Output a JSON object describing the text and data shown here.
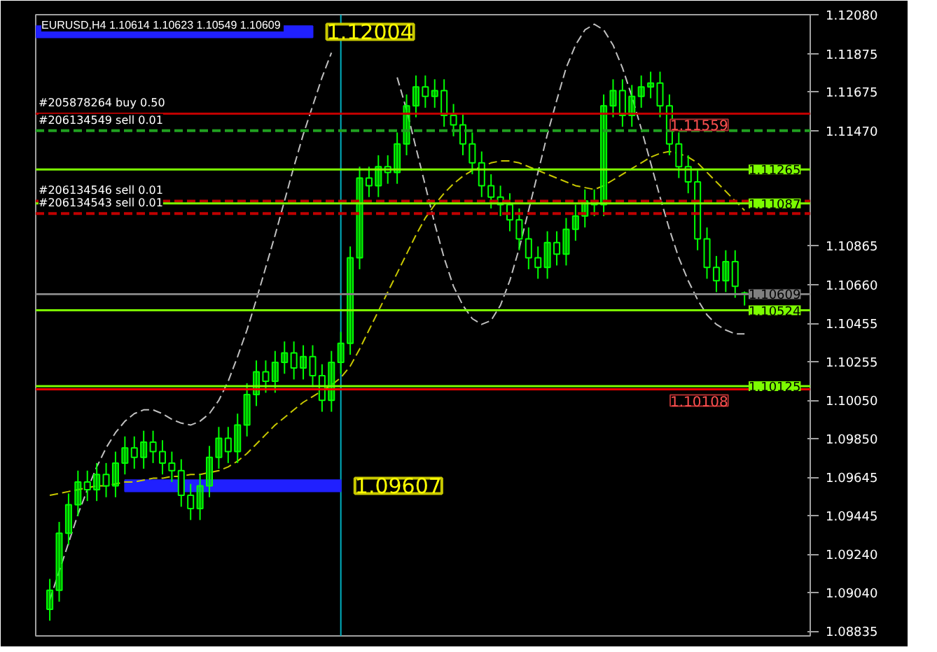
{
  "chart_data": {
    "type": "candlestick",
    "title": "EURUSD,H4  1.10614 1.10623 1.10549 1.10609",
    "color": "#00ff00",
    "categories": [
      null,
      null,
      null,
      null,
      null,
      null,
      null,
      null,
      null,
      null,
      null,
      null,
      null,
      null,
      null,
      null,
      null,
      null,
      null,
      null,
      null,
      null,
      null,
      null,
      null,
      null,
      null,
      null,
      null,
      null,
      null,
      null,
      null,
      null,
      null,
      null,
      null,
      null,
      null,
      null,
      null,
      null,
      null,
      null,
      null,
      null,
      null,
      null,
      null,
      null,
      null,
      null,
      null,
      null,
      null,
      null,
      null,
      null,
      null,
      null,
      null,
      null,
      null,
      null,
      null,
      null,
      null,
      null,
      null,
      null,
      null,
      null,
      null,
      null,
      null
    ],
    "ohlc": [
      [
        1.0895,
        1.0911,
        1.0889,
        1.0905
      ],
      [
        1.0905,
        1.0941,
        1.0899,
        1.0935
      ],
      [
        1.0935,
        1.0956,
        1.0929,
        1.095
      ],
      [
        1.095,
        1.0968,
        1.0944,
        1.0962
      ],
      [
        1.0962,
        1.0968,
        1.0952,
        1.0958
      ],
      [
        1.0958,
        1.0972,
        1.0952,
        1.0966
      ],
      [
        1.0966,
        1.0972,
        1.0954,
        1.096
      ],
      [
        1.096,
        1.0978,
        1.0954,
        1.0972
      ],
      [
        1.0972,
        1.0986,
        1.0966,
        1.098
      ],
      [
        1.098,
        1.0986,
        1.0969,
        1.0975
      ],
      [
        1.0975,
        1.0989,
        1.0969,
        1.0983
      ],
      [
        1.0983,
        1.0989,
        1.0972,
        1.0978
      ],
      [
        1.0978,
        1.0984,
        1.0966,
        1.0972
      ],
      [
        1.0972,
        1.0978,
        1.0962,
        1.0968
      ],
      [
        1.0968,
        1.0974,
        1.0949,
        1.0955
      ],
      [
        1.0955,
        1.0961,
        1.0942,
        1.0948
      ],
      [
        1.0948,
        1.0966,
        1.0942,
        1.096
      ],
      [
        1.096,
        1.0981,
        1.0954,
        1.0975
      ],
      [
        1.0975,
        1.0991,
        1.0969,
        1.0985
      ],
      [
        1.0985,
        1.0991,
        1.0972,
        1.0978
      ],
      [
        1.0978,
        1.0998,
        1.0972,
        1.0992
      ],
      [
        1.0992,
        1.1014,
        1.0986,
        1.1008
      ],
      [
        1.1008,
        1.1026,
        1.1002,
        1.102
      ],
      [
        1.102,
        1.1026,
        1.1009,
        1.1015
      ],
      [
        1.1015,
        1.1031,
        1.1009,
        1.1025
      ],
      [
        1.1025,
        1.1036,
        1.1019,
        1.103
      ],
      [
        1.103,
        1.1036,
        1.1016,
        1.1022
      ],
      [
        1.1022,
        1.1034,
        1.1016,
        1.1028
      ],
      [
        1.1028,
        1.1034,
        1.1012,
        1.1018
      ],
      [
        1.1018,
        1.1024,
        1.0999,
        1.1005
      ],
      [
        1.1005,
        1.1031,
        1.0999,
        1.1025
      ],
      [
        1.1025,
        1.1041,
        1.1019,
        1.1035
      ],
      [
        1.1035,
        1.1086,
        1.1029,
        1.108
      ],
      [
        1.108,
        1.1128,
        1.1074,
        1.1122
      ],
      [
        1.1122,
        1.1128,
        1.1112,
        1.1118
      ],
      [
        1.1118,
        1.1134,
        1.1112,
        1.1128
      ],
      [
        1.1128,
        1.1134,
        1.1119,
        1.1125
      ],
      [
        1.1125,
        1.1146,
        1.1119,
        1.114
      ],
      [
        1.114,
        1.1166,
        1.1134,
        1.116
      ],
      [
        1.116,
        1.1176,
        1.1154,
        1.117
      ],
      [
        1.117,
        1.1176,
        1.1159,
        1.1165
      ],
      [
        1.1165,
        1.1174,
        1.1159,
        1.1168
      ],
      [
        1.1168,
        1.1174,
        1.1149,
        1.1155
      ],
      [
        1.1155,
        1.1161,
        1.1144,
        1.115
      ],
      [
        1.115,
        1.1156,
        1.1134,
        1.114
      ],
      [
        1.114,
        1.1146,
        1.1124,
        1.113
      ],
      [
        1.113,
        1.1136,
        1.1112,
        1.1118
      ],
      [
        1.1118,
        1.1124,
        1.1106,
        1.1112
      ],
      [
        1.1112,
        1.1118,
        1.1102,
        1.1108
      ],
      [
        1.1108,
        1.1114,
        1.1094,
        1.11
      ],
      [
        1.11,
        1.1106,
        1.1084,
        1.109
      ],
      [
        1.109,
        1.1096,
        1.1074,
        1.108
      ],
      [
        1.108,
        1.1086,
        1.1069,
        1.1075
      ],
      [
        1.1075,
        1.1094,
        1.1069,
        1.1088
      ],
      [
        1.1088,
        1.1094,
        1.1076,
        1.1082
      ],
      [
        1.1082,
        1.1101,
        1.1076,
        1.1095
      ],
      [
        1.1095,
        1.1108,
        1.1089,
        1.1102
      ],
      [
        1.1102,
        1.1116,
        1.1096,
        1.111
      ],
      [
        1.111,
        1.1116,
        1.1102,
        1.1108
      ],
      [
        1.1108,
        1.1166,
        1.1102,
        1.116
      ],
      [
        1.116,
        1.1174,
        1.1154,
        1.1168
      ],
      [
        1.1168,
        1.1174,
        1.1149,
        1.1155
      ],
      [
        1.1155,
        1.1171,
        1.1149,
        1.1165
      ],
      [
        1.1165,
        1.1176,
        1.1159,
        1.117
      ],
      [
        1.117,
        1.1178,
        1.1164,
        1.1172
      ],
      [
        1.1172,
        1.1178,
        1.1154,
        1.116
      ],
      [
        1.116,
        1.1166,
        1.1134,
        1.114
      ],
      [
        1.114,
        1.1146,
        1.1122,
        1.1128
      ],
      [
        1.1128,
        1.1134,
        1.1114,
        1.112
      ],
      [
        1.112,
        1.1126,
        1.1084,
        1.109
      ],
      [
        1.109,
        1.1096,
        1.1069,
        1.1075
      ],
      [
        1.1075,
        1.1081,
        1.1062,
        1.1068
      ],
      [
        1.1068,
        1.1084,
        1.1062,
        1.1078
      ],
      [
        1.1078,
        1.1084,
        1.1059,
        1.1065
      ],
      [
        1.10614,
        1.10623,
        1.10549,
        1.10609
      ]
    ],
    "series": [
      {
        "type": "line",
        "color": "#c8c800",
        "line_style": "dashed",
        "values": [
          1.0955,
          1.0956,
          1.0957,
          1.0958,
          1.0959,
          1.096,
          1.096,
          1.0961,
          1.0962,
          1.0962,
          1.0963,
          1.0964,
          1.0964,
          1.0965,
          1.0965,
          1.0966,
          1.0966,
          1.0967,
          1.0968,
          1.097,
          1.0973,
          1.0977,
          1.0982,
          1.0987,
          1.0992,
          1.0996,
          1.1,
          1.1004,
          1.1007,
          1.101,
          1.1013,
          1.1017,
          1.1023,
          1.1032,
          1.1042,
          1.1052,
          1.1062,
          1.1072,
          1.1082,
          1.1092,
          1.1101,
          1.1108,
          1.1114,
          1.1119,
          1.1123,
          1.1126,
          1.1128,
          1.113,
          1.1131,
          1.1131,
          1.113,
          1.1128,
          1.1126,
          1.1124,
          1.1122,
          1.112,
          1.1118,
          1.1117,
          1.1116,
          1.1118,
          1.1121,
          1.1124,
          1.1127,
          1.113,
          1.1133,
          1.1135,
          1.1136,
          1.1135,
          1.1133,
          1.113,
          1.1125,
          1.112,
          1.1115,
          1.111,
          1.1105
        ]
      },
      {
        "type": "line",
        "color": "#c0c0c0",
        "line_style": "dashed",
        "values": [
          1.09,
          1.0915,
          1.093,
          1.0945,
          1.0958,
          1.097,
          1.098,
          1.0988,
          1.0994,
          1.0998,
          1.1,
          1.1,
          1.0998,
          1.0995,
          1.0993,
          1.0992,
          1.0994,
          1.0998,
          1.1005,
          1.1015,
          1.1028,
          1.1042,
          1.1058,
          1.1075,
          1.1092,
          1.111,
          1.1128,
          1.1145,
          1.116,
          1.1175,
          1.1188,
          null,
          null,
          null,
          null,
          null,
          null,
          1.1175,
          1.1158,
          1.1138,
          1.1118,
          1.1098,
          1.108,
          1.1065,
          1.1055,
          1.1048,
          1.1045,
          1.1047,
          1.1055,
          1.1068,
          1.1085,
          1.1105,
          1.1125,
          1.1145,
          1.1163,
          1.118,
          1.1192,
          1.12,
          1.1203,
          1.12,
          1.1192,
          1.118,
          1.1165,
          1.1148,
          1.113,
          1.1112,
          1.1095,
          1.108,
          1.1068,
          1.1058,
          1.105,
          1.1045,
          1.1042,
          1.104,
          1.104
        ]
      }
    ],
    "ylim": [
      1.0881,
      1.1208
    ],
    "yticks": [
      {
        "value": 1.1208,
        "label": "1.12080"
      },
      {
        "value": 1.11875,
        "label": "1.11875"
      },
      {
        "value": 1.11675,
        "label": "1.11675"
      },
      {
        "value": 1.1147,
        "label": "1.11470"
      },
      {
        "value": 1.10865,
        "label": "1.10865"
      },
      {
        "value": 1.1066,
        "label": "1.10660"
      },
      {
        "value": 1.10455,
        "label": "1.10455"
      },
      {
        "value": 1.10255,
        "label": "1.10255"
      },
      {
        "value": 1.1005,
        "label": "1.10050"
      },
      {
        "value": 1.0985,
        "label": "1.09850"
      },
      {
        "value": 1.09645,
        "label": "1.09645"
      },
      {
        "value": 1.09445,
        "label": "1.09445"
      },
      {
        "value": 1.0924,
        "label": "1.09240"
      },
      {
        "value": 1.0904,
        "label": "1.09040"
      },
      {
        "value": 1.08835,
        "label": "1.08835"
      }
    ],
    "tick_labels": "y",
    "ref_lines": [
      {
        "axis": "y",
        "value": 1.11559,
        "label": "#205878264 buy 0.50",
        "color": "#c00000",
        "line_style": "solid"
      },
      {
        "axis": "y",
        "value": 1.1147,
        "label": "#206134549 sell 0.01",
        "color": "#20a020",
        "line_style": "dashed"
      },
      {
        "axis": "y",
        "value": 1.11265,
        "label": "1.11265",
        "color": "#7cfc00",
        "line_style": "solid"
      },
      {
        "axis": "y",
        "value": 1.11099,
        "label": "#206134546 sell 0.01",
        "color": "#c00000",
        "line_style": "dashed"
      },
      {
        "axis": "y",
        "value": 1.11087,
        "label": "1.11087",
        "color": "#7cfc00",
        "line_style": "solid"
      },
      {
        "axis": "y",
        "value": 1.11033,
        "label": "#206134543 sell 0.01",
        "color": "#c00000",
        "line_style": "dashed"
      },
      {
        "axis": "y",
        "value": 1.10609,
        "label": "1.10609",
        "color": "#808080",
        "line_style": "solid"
      },
      {
        "axis": "y",
        "value": 1.10524,
        "label": "1.10524",
        "color": "#7cfc00",
        "line_style": "solid"
      },
      {
        "axis": "y",
        "value": 1.10125,
        "label": "1.10125",
        "color": "#7cfc00",
        "line_style": "solid"
      },
      {
        "axis": "y",
        "value": 1.10108,
        "color": "#ff0000",
        "line_style": "solid"
      }
    ],
    "bands": [
      {
        "axis": "y",
        "from": 1.1196,
        "to": 1.1202,
        "label": "1.12004",
        "color": "#2020ff"
      },
      {
        "axis": "y",
        "from": 1.0957,
        "to": 1.0963,
        "label": "1.09607",
        "color": "#2020ff"
      }
    ],
    "annotations": [
      {
        "text": "1.11559",
        "y": 1.11559
      },
      {
        "text": "1.10108",
        "y": 1.10108
      }
    ],
    "grid": false
  }
}
